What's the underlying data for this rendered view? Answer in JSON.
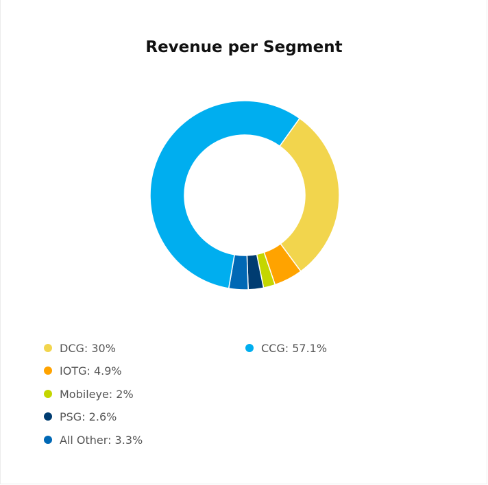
{
  "chart_data": {
    "type": "pie",
    "title": "Revenue per Segment",
    "donut": true,
    "slices": [
      {
        "label": "DCG",
        "value": 30,
        "display": "DCG: 30%",
        "color": "#f2d54d"
      },
      {
        "label": "IOTG",
        "value": 4.9,
        "display": "IOTG: 4.9%",
        "color": "#ffa300"
      },
      {
        "label": "Mobileye",
        "value": 2,
        "display": "Mobileye: 2%",
        "color": "#c4d600"
      },
      {
        "label": "PSG",
        "value": 2.6,
        "display": "PSG: 2.6%",
        "color": "#003c71"
      },
      {
        "label": "All Other",
        "value": 3.3,
        "display": "All Other: 3.3%",
        "color": "#0068b5"
      },
      {
        "label": "CCG",
        "value": 57.1,
        "display": "CCG: 57.1%",
        "color": "#00aeef"
      }
    ],
    "legend_placement": "bottom"
  }
}
